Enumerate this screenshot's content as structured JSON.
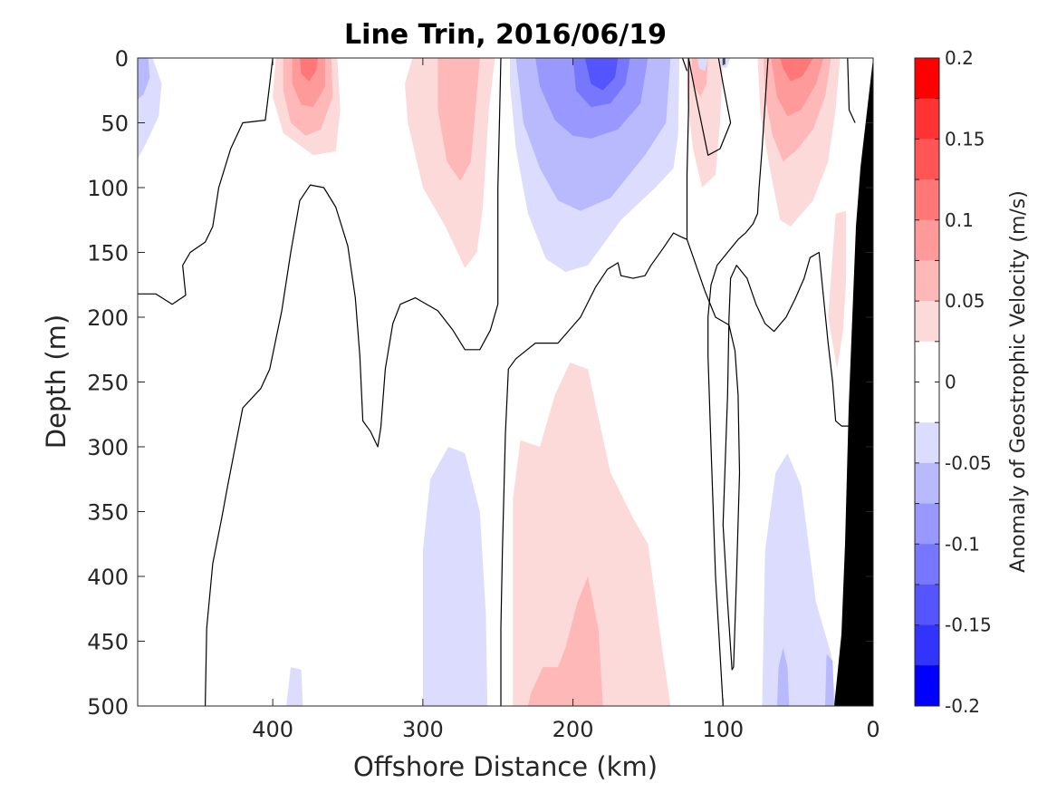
{
  "chart_data": {
    "type": "contour",
    "title": "Line Trin, 2016/06/19",
    "xlabel": "Offshore Distance (km)",
    "ylabel": "Depth (m)",
    "xlim": [
      490,
      0
    ],
    "ylim": [
      0,
      500
    ],
    "x_reversed": true,
    "y_reversed": true,
    "xticks": [
      400,
      300,
      200,
      100,
      0
    ],
    "xtick_labels": [
      "400",
      "300",
      "200",
      "100",
      "0"
    ],
    "yticks": [
      0,
      50,
      100,
      150,
      200,
      250,
      300,
      350,
      400,
      450,
      500
    ],
    "ytick_labels": [
      "0",
      "50",
      "100",
      "150",
      "200",
      "250",
      "300",
      "350",
      "400",
      "450",
      "500"
    ],
    "colorbar": {
      "label": "Anomaly of Geostrophic Velocity (m/s)",
      "range": [
        -0.2,
        0.2
      ],
      "step": 0.025,
      "tick_values": [
        0.2,
        0.15,
        0.1,
        0.05,
        0,
        -0.05,
        -0.1,
        -0.15,
        -0.2
      ],
      "tick_labels": [
        "0.2",
        "0.15",
        "0.1",
        "0.05",
        "0",
        "-0.05",
        "-0.1",
        "-0.15",
        "-0.2"
      ],
      "colors_top_to_bottom": [
        "#ff0000",
        "#ff3333",
        "#ff5555",
        "#ff7777",
        "#fe9a9a",
        "#feb8b8",
        "#fddada",
        "#ffffff",
        "#ffffff",
        "#dcdcfe",
        "#b9b9fe",
        "#9898fe",
        "#7777fe",
        "#5555fe",
        "#3333fe",
        "#0000ff"
      ]
    },
    "topography_color": "#000000",
    "zero_contour_color": "#000000",
    "regions": [
      {
        "sign": "negative",
        "x_range": [
          490,
          475
        ],
        "depth_range": [
          0,
          75
        ],
        "max_abs": 0.05
      },
      {
        "sign": "positive",
        "x_range": [
          395,
          355
        ],
        "depth_range": [
          0,
          75
        ],
        "max_abs": 0.125
      },
      {
        "sign": "positive",
        "x_range": [
          310,
          245
        ],
        "depth_range": [
          0,
          160
        ],
        "max_abs": 0.075
      },
      {
        "sign": "negative",
        "x_range": [
          240,
          130
        ],
        "depth_range": [
          0,
          165
        ],
        "max_abs": 0.15
      },
      {
        "sign": "positive",
        "x_range": [
          125,
          100
        ],
        "depth_range": [
          0,
          100
        ],
        "max_abs": 0.05
      },
      {
        "sign": "positive",
        "x_range": [
          75,
          25
        ],
        "depth_range": [
          0,
          130
        ],
        "max_abs": 0.1
      },
      {
        "sign": "positive",
        "x_range": [
          25,
          15
        ],
        "depth_range": [
          120,
          240
        ],
        "max_abs": 0.05
      },
      {
        "sign": "negative",
        "x_range": [
          300,
          255
        ],
        "depth_range": [
          295,
          500
        ],
        "max_abs": 0.05
      },
      {
        "sign": "positive",
        "x_range": [
          240,
          135
        ],
        "depth_range": [
          235,
          500
        ],
        "max_abs": 0.075
      },
      {
        "sign": "negative",
        "x_range": [
          75,
          25
        ],
        "depth_range": [
          300,
          500
        ],
        "max_abs": 0.075
      },
      {
        "sign": "negative",
        "x_range": [
          390,
          380
        ],
        "depth_range": [
          470,
          500
        ],
        "max_abs": 0.05
      }
    ]
  }
}
